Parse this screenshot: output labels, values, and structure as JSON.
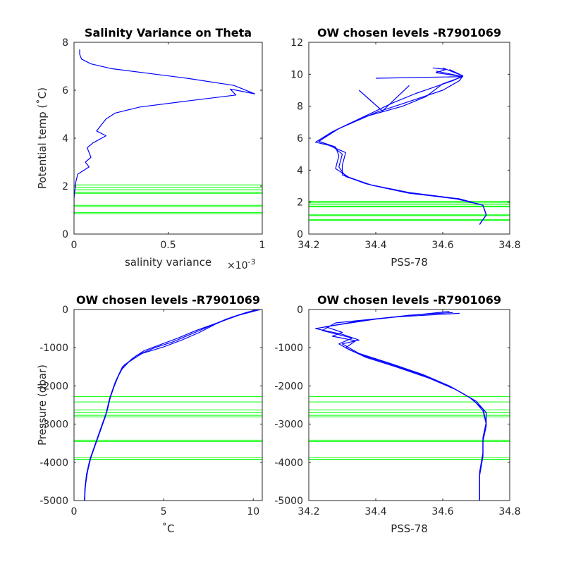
{
  "chart_data": [
    {
      "type": "line",
      "title": "Salinity Variance on Theta",
      "xlabel": "salinity variance",
      "xscale_label": "×10",
      "xscale_exp": "-3",
      "ylabel": "Potential temp (˚C)",
      "xlim": [
        0,
        1
      ],
      "ylim": [
        0,
        8
      ],
      "xticks": [
        {
          "v": 0,
          "label": "0"
        },
        {
          "v": 0.5,
          "label": "0.5"
        },
        {
          "v": 1,
          "label": "1"
        }
      ],
      "yticks": [
        {
          "v": 0,
          "label": "0"
        },
        {
          "v": 2,
          "label": "2"
        },
        {
          "v": 4,
          "label": "4"
        },
        {
          "v": 6,
          "label": "6"
        },
        {
          "v": 8,
          "label": "8"
        }
      ],
      "series": [
        {
          "color": "#0000ff",
          "x": [
            0.03,
            0.03,
            0.04,
            0.09,
            0.2,
            0.4,
            0.6,
            0.85,
            0.96,
            0.83,
            0.86,
            0.6,
            0.35,
            0.22,
            0.17,
            0.12,
            0.17,
            0.1,
            0.07,
            0.09,
            0.06,
            0.08,
            0.04,
            0.02,
            0.01,
            0.0,
            0.0
          ],
          "y": [
            7.7,
            7.5,
            7.3,
            7.1,
            6.9,
            6.7,
            6.5,
            6.2,
            5.85,
            6.05,
            5.8,
            5.55,
            5.3,
            5.05,
            4.8,
            4.3,
            4.1,
            3.8,
            3.6,
            3.2,
            3.0,
            2.8,
            2.6,
            2.5,
            2.2,
            1.5,
            0.8
          ]
        }
      ],
      "hlines": {
        "color": "#00ff00",
        "values": [
          0.85,
          0.9,
          1.15,
          1.2,
          1.7,
          1.75,
          1.85,
          1.95,
          2.05
        ]
      }
    },
    {
      "type": "line",
      "title": "OW chosen levels -R7901069",
      "xlabel": "PSS-78",
      "ylabel": "",
      "xlim": [
        34.2,
        34.8
      ],
      "ylim": [
        0,
        12
      ],
      "xticks": [
        {
          "v": 34.2,
          "label": "34.2"
        },
        {
          "v": 34.4,
          "label": "34.4"
        },
        {
          "v": 34.6,
          "label": "34.6"
        },
        {
          "v": 34.8,
          "label": "34.8"
        }
      ],
      "yticks": [
        {
          "v": 0,
          "label": "0"
        },
        {
          "v": 2,
          "label": "2"
        },
        {
          "v": 4,
          "label": "4"
        },
        {
          "v": 6,
          "label": "6"
        },
        {
          "v": 8,
          "label": "8"
        },
        {
          "v": 10,
          "label": "10"
        },
        {
          "v": 12,
          "label": "12"
        }
      ],
      "series": [
        {
          "color": "#0000ff",
          "x": [
            34.71,
            34.73,
            34.72,
            34.65,
            34.5,
            34.38,
            34.31,
            34.29,
            34.3,
            34.27,
            34.23,
            34.28,
            34.38,
            34.45,
            34.52,
            34.63,
            34.66,
            34.62
          ],
          "y": [
            0.6,
            1.2,
            1.8,
            2.2,
            2.6,
            3.1,
            3.6,
            4.2,
            5.0,
            5.5,
            5.8,
            6.5,
            7.5,
            8.2,
            8.8,
            9.6,
            9.9,
            10.3
          ]
        },
        {
          "color": "#0000ff",
          "x": [
            34.71,
            34.73,
            34.72,
            34.64,
            34.49,
            34.37,
            34.3,
            34.3,
            34.31,
            34.26,
            34.22,
            34.27,
            34.36,
            34.48,
            34.55,
            34.6,
            34.66,
            34.58
          ],
          "y": [
            0.6,
            1.2,
            1.8,
            2.2,
            2.6,
            3.15,
            3.7,
            4.3,
            5.1,
            5.55,
            5.75,
            6.4,
            7.3,
            8.0,
            8.6,
            9.4,
            9.85,
            10.2
          ]
        },
        {
          "color": "#0000ff",
          "x": [
            34.71,
            34.73,
            34.72,
            34.65,
            34.5,
            34.39,
            34.32,
            34.28,
            34.29,
            34.28,
            34.23,
            34.29,
            34.4,
            34.5,
            34.6,
            34.65,
            34.66,
            34.6
          ],
          "y": [
            0.6,
            1.2,
            1.8,
            2.2,
            2.55,
            3.05,
            3.55,
            4.1,
            4.9,
            5.45,
            5.8,
            6.6,
            7.6,
            8.3,
            9.0,
            9.6,
            9.9,
            10.4
          ]
        },
        {
          "color": "#0000ff",
          "x": [
            34.4,
            34.66,
            34.58,
            34.61,
            34.57
          ],
          "y": [
            9.75,
            9.85,
            10.1,
            10.3,
            10.4
          ]
        },
        {
          "color": "#0000ff",
          "x": [
            34.35,
            34.42,
            34.46,
            34.5
          ],
          "y": [
            9.0,
            7.7,
            8.5,
            9.3
          ]
        }
      ],
      "hlines": {
        "color": "#00ff00",
        "values": [
          0.85,
          0.9,
          1.15,
          1.2,
          1.7,
          1.75,
          1.85,
          1.95,
          2.05
        ]
      }
    },
    {
      "type": "line",
      "title": "OW chosen levels -R7901069",
      "xlabel": "˚C",
      "ylabel": "Pressure (dbar)",
      "xlim": [
        0,
        10.5
      ],
      "ylim": [
        -5000,
        0
      ],
      "xticks": [
        {
          "v": 0,
          "label": "0"
        },
        {
          "v": 5,
          "label": "5"
        },
        {
          "v": 10,
          "label": "10"
        }
      ],
      "yticks": [
        {
          "v": -5000,
          "label": "-5000"
        },
        {
          "v": -4000,
          "label": "-4000"
        },
        {
          "v": -3000,
          "label": "-3000"
        },
        {
          "v": -2000,
          "label": "-2000"
        },
        {
          "v": -1000,
          "label": "-1000"
        },
        {
          "v": 0,
          "label": "0"
        }
      ],
      "series": [
        {
          "color": "#0000ff",
          "x": [
            10.3,
            9.5,
            8.5,
            7.5,
            6.5,
            5.5,
            4.5,
            3.5,
            2.7,
            2.3,
            2.0,
            1.8,
            1.5,
            1.2,
            0.9,
            0.7,
            0.6,
            0.6
          ],
          "y": [
            0,
            -100,
            -250,
            -450,
            -650,
            -850,
            -1000,
            -1200,
            -1500,
            -1900,
            -2300,
            -2700,
            -3100,
            -3500,
            -3900,
            -4300,
            -4700,
            -5000
          ]
        },
        {
          "color": "#0000ff",
          "x": [
            10.2,
            9.6,
            8.8,
            7.9,
            7.0,
            6.0,
            5.0,
            3.8,
            2.8,
            2.35,
            2.05,
            1.85,
            1.55,
            1.25,
            0.95,
            0.75,
            0.62,
            0.6
          ],
          "y": [
            0,
            -80,
            -200,
            -380,
            -600,
            -800,
            -980,
            -1150,
            -1450,
            -1850,
            -2250,
            -2650,
            -3050,
            -3450,
            -3850,
            -4250,
            -4650,
            -5000
          ]
        },
        {
          "color": "#0000ff",
          "x": [
            10.4,
            9.2,
            8.0,
            6.8,
            5.8,
            4.8,
            3.9,
            3.2,
            2.6,
            2.25,
            1.95,
            1.75,
            1.45,
            1.15,
            0.85,
            0.68,
            0.6,
            0.58
          ],
          "y": [
            0,
            -150,
            -350,
            -550,
            -750,
            -920,
            -1080,
            -1300,
            -1600,
            -2000,
            -2400,
            -2800,
            -3200,
            -3600,
            -4000,
            -4400,
            -4800,
            -5000
          ]
        }
      ],
      "hlines": {
        "color": "#00ff00",
        "values": [
          -2280,
          -2420,
          -2630,
          -2700,
          -2770,
          -2810,
          -3420,
          -3460,
          -3880,
          -3920
        ]
      }
    },
    {
      "type": "line",
      "title": "OW chosen levels -R7901069",
      "xlabel": "PSS-78",
      "ylabel": "",
      "xlim": [
        34.2,
        34.8
      ],
      "ylim": [
        -5000,
        0
      ],
      "xticks": [
        {
          "v": 34.2,
          "label": "34.2"
        },
        {
          "v": 34.4,
          "label": "34.4"
        },
        {
          "v": 34.6,
          "label": "34.6"
        },
        {
          "v": 34.8,
          "label": "34.8"
        }
      ],
      "yticks": [
        {
          "v": -5000,
          "label": "-5000"
        },
        {
          "v": -4000,
          "label": "-4000"
        },
        {
          "v": -3000,
          "label": "-3000"
        },
        {
          "v": -2000,
          "label": "-2000"
        },
        {
          "v": -1000,
          "label": "-1000"
        },
        {
          "v": 0,
          "label": "0"
        }
      ],
      "series": [
        {
          "color": "#0000ff",
          "x": [
            34.65,
            34.45,
            34.28,
            34.24,
            34.33,
            34.29,
            34.32,
            34.36,
            34.45,
            34.55,
            34.63,
            34.69,
            34.72,
            34.73,
            34.72,
            34.72,
            34.71,
            34.71
          ],
          "y": [
            -100,
            -200,
            -350,
            -550,
            -750,
            -900,
            -1050,
            -1200,
            -1450,
            -1750,
            -2050,
            -2350,
            -2650,
            -3000,
            -3400,
            -3800,
            -4300,
            -5000
          ]
        },
        {
          "color": "#0000ff",
          "x": [
            34.62,
            34.4,
            34.25,
            34.3,
            34.27,
            34.34,
            34.31,
            34.37,
            34.46,
            34.56,
            34.64,
            34.7,
            34.73,
            34.73,
            34.72,
            34.72,
            34.71,
            34.71
          ],
          "y": [
            -50,
            -250,
            -450,
            -600,
            -700,
            -820,
            -1000,
            -1250,
            -1500,
            -1800,
            -2100,
            -2400,
            -2700,
            -3050,
            -3450,
            -3850,
            -4350,
            -5000
          ]
        },
        {
          "color": "#0000ff",
          "x": [
            34.63,
            34.5,
            34.35,
            34.22,
            34.3,
            34.35,
            34.3,
            34.35,
            34.44,
            34.54,
            34.62,
            34.68,
            34.72,
            34.73,
            34.72,
            34.72,
            34.71,
            34.71
          ],
          "y": [
            -80,
            -150,
            -300,
            -500,
            -650,
            -800,
            -900,
            -1150,
            -1400,
            -1700,
            -2000,
            -2300,
            -2600,
            -2950,
            -3350,
            -3750,
            -4250,
            -5000
          ]
        }
      ],
      "hlines": {
        "color": "#00ff00",
        "values": [
          -2280,
          -2420,
          -2630,
          -2700,
          -2770,
          -2810,
          -3420,
          -3460,
          -3880,
          -3920
        ]
      }
    }
  ]
}
